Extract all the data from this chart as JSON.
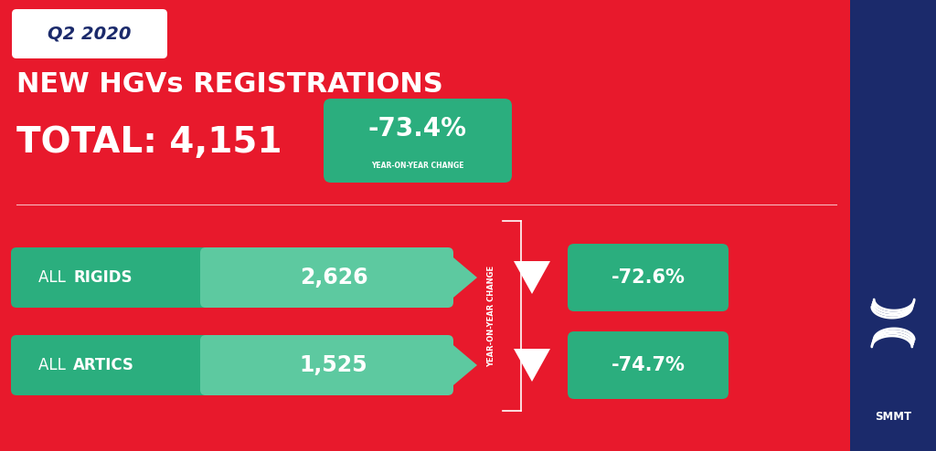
{
  "bg_color": "#E8192C",
  "navy_color": "#1B2A6B",
  "green_dark": "#2BAE7E",
  "green_light": "#5DC9A0",
  "white": "#FFFFFF",
  "q2_label": "Q2 2020",
  "title_line1": "NEW HGVs REGISTRATIONS",
  "title_line2": "TOTAL: 4,151",
  "yoy_main": "-73.4%",
  "yoy_main_sub": "YEAR-ON-YEAR CHANGE",
  "row1_label_plain": "ALL ",
  "row1_label_bold": "RIGIDS",
  "row1_value": "2,626",
  "row1_yoy": "-72.6%",
  "row2_label_plain": "ALL ",
  "row2_label_bold": "ARTICS",
  "row2_value": "1,525",
  "row2_yoy": "-74.7%",
  "side_text": "YEAR-ON-YEAR CHANGE"
}
